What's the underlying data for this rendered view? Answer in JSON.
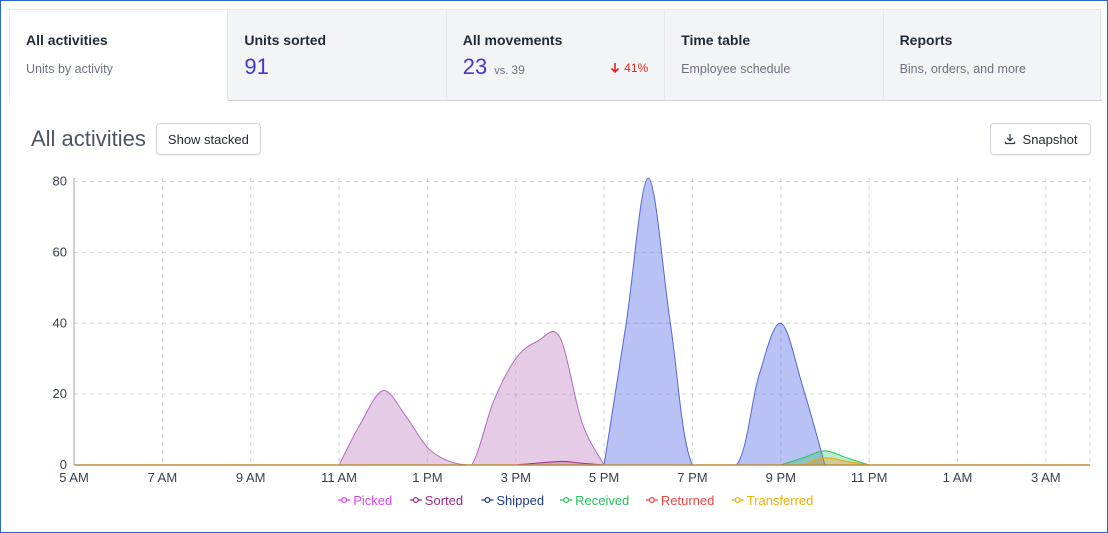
{
  "tabs": [
    {
      "title": "All activities",
      "subtitle": "Units by activity"
    },
    {
      "title": "Units sorted",
      "value": "91"
    },
    {
      "title": "All movements",
      "value": "23",
      "vs_prefix": "vs.",
      "vs_value": "39",
      "delta": "41%"
    },
    {
      "title": "Time table",
      "subtitle": "Employee schedule"
    },
    {
      "title": "Reports",
      "subtitle": "Bins, orders, and more"
    }
  ],
  "header": {
    "title": "All activities",
    "stack_label": "Show stacked",
    "snapshot_label": "Snapshot"
  },
  "colors": {
    "accent": "#4338ca",
    "down": "#dc2626"
  },
  "chart_data": {
    "type": "area",
    "x_ticks": [
      "5 AM",
      "7 AM",
      "9 AM",
      "11 AM",
      "1 PM",
      "3 PM",
      "5 PM",
      "7 PM",
      "9 PM",
      "11 PM",
      "1 AM",
      "3 AM"
    ],
    "y_ticks": [
      "0",
      "20",
      "40",
      "60",
      "80"
    ],
    "xlim": [
      "5 AM",
      "4 AM"
    ],
    "ylim": [
      0,
      81
    ],
    "grid": true,
    "legend_position": "bottom-center",
    "series": [
      {
        "name": "Picked",
        "color": "#d946ef",
        "fill": "rgba(200,140,200,0.45)",
        "stroke": "#b26bbf",
        "points": [
          [
            "11 AM",
            0
          ],
          [
            "11:30 AM",
            12
          ],
          [
            "12 PM",
            21
          ],
          [
            "12:30 PM",
            14
          ],
          [
            "1 PM",
            5
          ],
          [
            "1:30 PM",
            1
          ],
          [
            "2 PM",
            0
          ],
          [
            "2:30 PM",
            18
          ],
          [
            "3 PM",
            30
          ],
          [
            "3:30 PM",
            35
          ],
          [
            "4 PM",
            36
          ],
          [
            "4:30 PM",
            12
          ],
          [
            "5 PM",
            0
          ]
        ]
      },
      {
        "name": "Sorted",
        "color": "#9b2d8c",
        "fill": "rgba(155,45,140,0.25)",
        "stroke": "#9b2d8c",
        "points": [
          [
            "3 PM",
            0
          ],
          [
            "4 PM",
            1
          ],
          [
            "4:30 PM",
            0.5
          ],
          [
            "5 PM",
            0
          ]
        ]
      },
      {
        "name": "Shipped",
        "color": "#1e3a8a",
        "fill": "rgba(99,120,230,0.45)",
        "stroke": "#5566d8",
        "points": [
          [
            "5 PM",
            0
          ],
          [
            "5:30 PM",
            40
          ],
          [
            "6 PM",
            81
          ],
          [
            "6:30 PM",
            40
          ],
          [
            "7 PM",
            0
          ],
          [
            "8 PM",
            0
          ],
          [
            "8:30 PM",
            25
          ],
          [
            "9 PM",
            40
          ],
          [
            "9:30 PM",
            22
          ],
          [
            "10 PM",
            0
          ]
        ]
      },
      {
        "name": "Received",
        "color": "#22c55e",
        "fill": "rgba(34,197,94,0.3)",
        "stroke": "#22c55e",
        "points": [
          [
            "9 PM",
            0
          ],
          [
            "9:30 PM",
            2
          ],
          [
            "10 PM",
            4
          ],
          [
            "10:30 PM",
            2
          ],
          [
            "11 PM",
            0
          ]
        ]
      },
      {
        "name": "Returned",
        "color": "#ef4444",
        "fill": "rgba(239,68,68,0.15)",
        "stroke": "#ef4444",
        "points": [
          [
            "9:30 PM",
            0
          ],
          [
            "10 PM",
            2
          ],
          [
            "10:30 PM",
            1
          ],
          [
            "11 PM",
            0
          ]
        ]
      },
      {
        "name": "Transferred",
        "color": "#eab308",
        "fill": "rgba(234,179,8,0.2)",
        "stroke": "#eab308",
        "points": [
          [
            "9:30 PM",
            0
          ],
          [
            "10 PM",
            2
          ],
          [
            "10:30 PM",
            1
          ],
          [
            "11 PM",
            0
          ]
        ]
      }
    ]
  }
}
